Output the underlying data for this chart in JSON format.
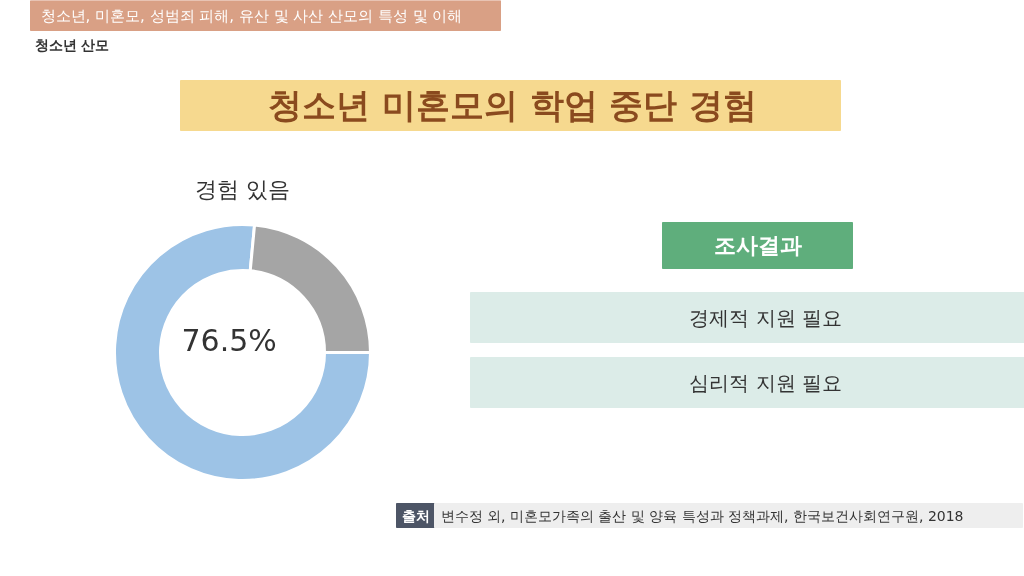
{
  "chart_data": {
    "type": "donut",
    "title": "청소년 미혼모의 학업 중단 경험",
    "categories": [
      "경험 있음",
      null
    ],
    "values": [
      76.5,
      23.5
    ],
    "colors": [
      "#9dc3e6",
      "#a5a5a5"
    ],
    "value_labels": [
      "76.5%",
      null
    ],
    "annotations": [
      "청소년, 미혼모, 성범죄 피해, 유산 및 사산 산모의 특성 및 이해",
      "청소년 산모",
      "조사결과",
      "경제적 지원 필요",
      "심리적 지원 필요",
      "출처",
      "변수정 외, 미혼모가족의 출산 및 양육 특성과 정책과제, 한국보건사회연구원, 2018"
    ]
  }
}
